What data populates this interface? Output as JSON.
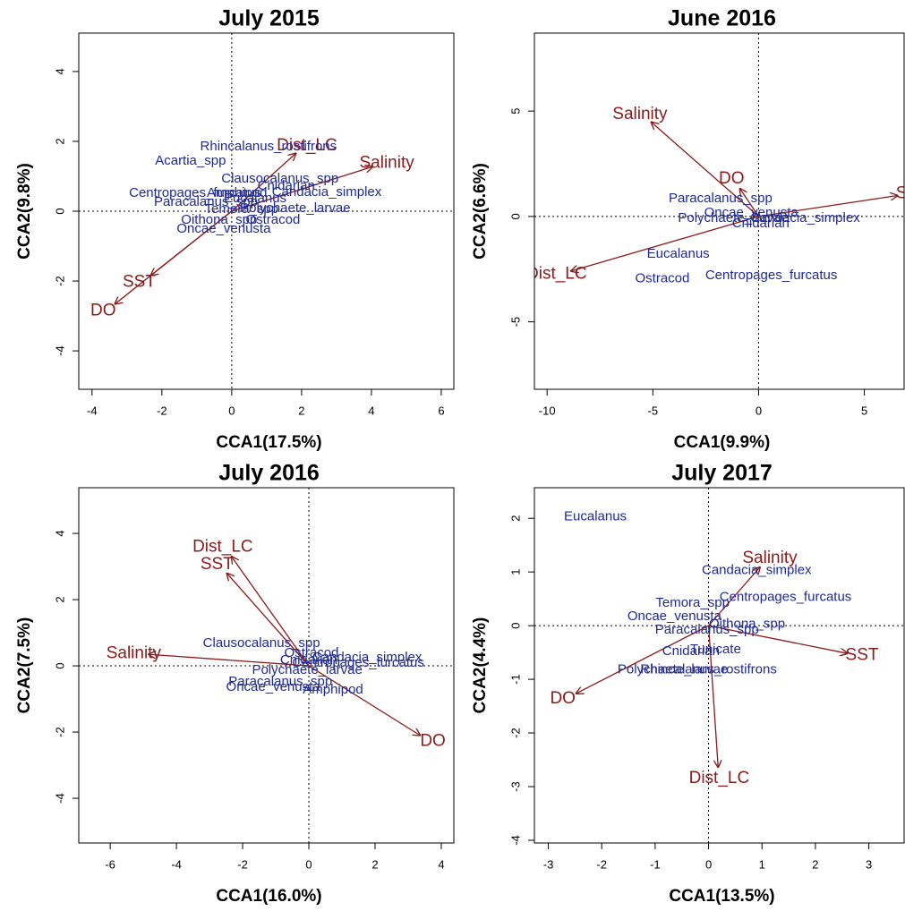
{
  "chart_data": [
    {
      "type": "biplot",
      "title": "July 2015",
      "xlabel": "CCA1(17.5%)",
      "ylabel": "CCA2(9.8%)",
      "xlim": [
        -4.38,
        6.36
      ],
      "ylim": [
        -5.1,
        5.1
      ],
      "xticks": [
        -4,
        -2,
        0,
        2,
        4,
        6
      ],
      "yticks": [
        -4,
        -2,
        0,
        2,
        4
      ],
      "species_color": "#1f2a96",
      "arrow_color": "#8b1a1a",
      "species": [
        {
          "name": "Rhincalanus_rostifrons",
          "x": 1.05,
          "y": 1.85
        },
        {
          "name": "Acartia_spp",
          "x": -1.18,
          "y": 1.44
        },
        {
          "name": "Clausocalanus_spp",
          "x": 1.38,
          "y": 0.92
        },
        {
          "name": "Centropages_furcatus",
          "x": -1.05,
          "y": 0.51
        },
        {
          "name": "Cnidarian",
          "x": 1.56,
          "y": 0.72
        },
        {
          "name": "Candacia_simplex",
          "x": 2.72,
          "y": 0.54
        },
        {
          "name": "Amphipod",
          "x": 0.15,
          "y": 0.51
        },
        {
          "name": "Eucalanus",
          "x": 0.67,
          "y": 0.36
        },
        {
          "name": "Paracalanus_spp",
          "x": -0.74,
          "y": 0.26
        },
        {
          "name": "Polychaete_larvae",
          "x": 1.82,
          "y": 0.08
        },
        {
          "name": "Temora_spp",
          "x": 0.28,
          "y": 0.05
        },
        {
          "name": "Oithona_spp",
          "x": -0.36,
          "y": -0.26
        },
        {
          "name": "Ostracod",
          "x": 1.18,
          "y": -0.26
        },
        {
          "name": "Oncae_venusta",
          "x": -0.23,
          "y": -0.51
        }
      ],
      "arrows": [
        {
          "name": "Dist_LC",
          "x": 1.85,
          "y": 1.67
        },
        {
          "name": "Salinity",
          "x": 4.05,
          "y": 1.28
        },
        {
          "name": "SST",
          "x": -2.33,
          "y": -1.85
        },
        {
          "name": "DO",
          "x": -3.36,
          "y": -2.67
        }
      ]
    },
    {
      "type": "biplot",
      "title": "June 2016",
      "xlabel": "CCA1(9.9%)",
      "ylabel": "CCA2(6.6%)",
      "xlim": [
        -10.6,
        6.88
      ],
      "ylim": [
        -8.2,
        8.7
      ],
      "xticks": [
        -10,
        -5,
        0,
        5
      ],
      "yticks": [
        -5,
        0,
        5
      ],
      "species_color": "#1f2a96",
      "arrow_color": "#8b1a1a",
      "species": [
        {
          "name": "Paracalanus_spp",
          "x": -1.8,
          "y": 0.85
        },
        {
          "name": "Oncae_venusta",
          "x": -0.35,
          "y": 0.17
        },
        {
          "name": "Polychaete_larvae",
          "x": -1.2,
          "y": -0.1
        },
        {
          "name": "Candacia_simplex",
          "x": 2.2,
          "y": -0.1
        },
        {
          "name": "Cnidarian",
          "x": 0.1,
          "y": -0.35
        },
        {
          "name": "Eucalanus",
          "x": -3.8,
          "y": -1.8
        },
        {
          "name": "Ostracod",
          "x": -4.55,
          "y": -2.95
        },
        {
          "name": "Centropages_furcatus",
          "x": 0.6,
          "y": -2.8
        }
      ],
      "arrows": [
        {
          "name": "Salinity",
          "x": -5.1,
          "y": 4.5
        },
        {
          "name": "DO",
          "x": -0.9,
          "y": 1.35
        },
        {
          "name": "SST",
          "x": 6.6,
          "y": 1.0
        },
        {
          "name": "Dist_LC",
          "x": -8.9,
          "y": -2.6
        }
      ]
    },
    {
      "type": "biplot",
      "title": "July 2016",
      "xlabel": "CCA1(16.0%)",
      "ylabel": "CCA2(7.5%)",
      "xlim": [
        -6.95,
        4.38
      ],
      "ylim": [
        -5.35,
        5.38
      ],
      "xticks": [
        -6,
        -4,
        -2,
        0,
        2,
        4
      ],
      "yticks": [
        -4,
        -2,
        0,
        2,
        4
      ],
      "species_color": "#1f2a96",
      "arrow_color": "#8b1a1a",
      "species": [
        {
          "name": "Clausocalanus_spp",
          "x": -1.43,
          "y": 0.68
        },
        {
          "name": "Ostracod",
          "x": 0.08,
          "y": 0.38
        },
        {
          "name": "Cnidarian",
          "x": 0.0,
          "y": 0.16
        },
        {
          "name": "Candacia_simplex",
          "x": 1.76,
          "y": 0.24
        },
        {
          "name": "Centropages_furcatus",
          "x": 1.49,
          "y": 0.08
        },
        {
          "name": "Polychaete_larvae",
          "x": -0.05,
          "y": -0.14
        },
        {
          "name": "Paracalanus_spp",
          "x": -0.86,
          "y": -0.49
        },
        {
          "name": "Oncae_venusta",
          "x": -1.08,
          "y": -0.65
        },
        {
          "name": "Amphipod",
          "x": 0.73,
          "y": -0.73
        }
      ],
      "arrows": [
        {
          "name": "Dist_LC",
          "x": -2.35,
          "y": 3.32
        },
        {
          "name": "SST",
          "x": -2.49,
          "y": 2.81
        },
        {
          "name": "Salinity",
          "x": -4.86,
          "y": 0.35
        },
        {
          "name": "DO",
          "x": 3.38,
          "y": -2.11
        }
      ]
    },
    {
      "type": "biplot",
      "title": "July 2017",
      "xlabel": "CCA1(13.5%)",
      "ylabel": "CCA2(4.4%)",
      "xlim": [
        -3.26,
        3.66
      ],
      "ylim": [
        -4.05,
        2.57
      ],
      "xticks": [
        -3,
        -2,
        -1,
        0,
        1,
        2,
        3
      ],
      "yticks": [
        -4,
        -3,
        -2,
        -1,
        0,
        1,
        2
      ],
      "species_color": "#1f2a96",
      "arrow_color": "#8b1a1a",
      "species": [
        {
          "name": "Eucalanus",
          "x": -2.12,
          "y": 2.03
        },
        {
          "name": "Candacia_simplex",
          "x": 0.9,
          "y": 1.03
        },
        {
          "name": "Centropages_furcatus",
          "x": 1.44,
          "y": 0.53
        },
        {
          "name": "Temora_spp",
          "x": -0.3,
          "y": 0.42
        },
        {
          "name": "Oncae_venusta",
          "x": -0.64,
          "y": 0.17
        },
        {
          "name": "Oithona_spp",
          "x": 0.72,
          "y": 0.03
        },
        {
          "name": "Paracalanus_spp",
          "x": -0.03,
          "y": -0.08
        },
        {
          "name": "Cnidarian",
          "x": -0.33,
          "y": -0.48
        },
        {
          "name": "Tunicate",
          "x": 0.13,
          "y": -0.45
        },
        {
          "name": "Polychaete_larvae",
          "x": -0.67,
          "y": -0.82
        },
        {
          "name": "Rhincalanus_rostifrons",
          "x": 0.0,
          "y": -0.82
        }
      ],
      "arrows": [
        {
          "name": "Salinity",
          "x": 0.97,
          "y": 1.1
        },
        {
          "name": "SST",
          "x": 2.61,
          "y": -0.52
        },
        {
          "name": "DO",
          "x": -2.49,
          "y": -1.27
        },
        {
          "name": "Dist_LC",
          "x": 0.18,
          "y": -2.65
        }
      ]
    }
  ]
}
